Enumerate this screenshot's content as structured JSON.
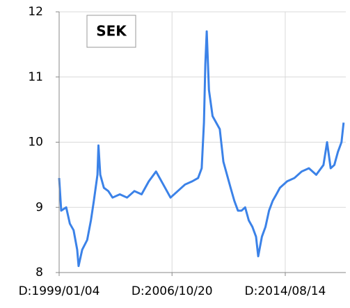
{
  "chart_data": {
    "type": "line",
    "title": "SEK",
    "x": [
      "1999/01/04",
      "1999/02/25",
      "1999/07/01",
      "1999/10/01",
      "2000/01/03",
      "2000/04/03",
      "2000/05/08",
      "2000/08/07",
      "2000/12/11",
      "2001/03/15",
      "2001/05/28",
      "2001/08/27",
      "2001/09/21",
      "2001/11/06",
      "2002/02/05",
      "2002/05/27",
      "2002/09/12",
      "2003/03/14",
      "2003/09/12",
      "2004/03/15",
      "2004/09/13",
      "2005/03/14",
      "2005/09/12",
      "2006/03/14",
      "2006/09/12",
      "2007/03/14",
      "2007/09/12",
      "2008/03/14",
      "2008/08/07",
      "2008/11/06",
      "2009/01/02",
      "2009/02/06",
      "2009/03/13",
      "2009/05/08",
      "2009/08/07",
      "2009/11/06",
      "2010/02/05",
      "2010/05/07",
      "2010/08/06",
      "2010/11/05",
      "2011/02/07",
      "2011/05/09",
      "2011/08/08",
      "2011/11/07",
      "2012/02/06",
      "2012/05/08",
      "2012/08/07",
      "2012/10/01",
      "2013/01/02",
      "2013/04/02",
      "2013/07/01",
      "2013/10/01",
      "2014/01/02",
      "2014/04/01",
      "2014/10/01",
      "2015/04/01",
      "2015/10/01",
      "2016/04/01",
      "2016/10/03",
      "2017/04/03",
      "2017/07/03",
      "2017/10/02",
      "2018/01/02",
      "2018/04/02",
      "2018/07/02",
      "2018/08/24"
    ],
    "series": [
      {
        "name": "SEK",
        "color": "#3b82e8",
        "values": [
          9.45,
          8.95,
          9.0,
          8.75,
          8.65,
          8.35,
          8.1,
          8.35,
          8.5,
          8.8,
          9.1,
          9.5,
          9.95,
          9.5,
          9.3,
          9.25,
          9.15,
          9.2,
          9.15,
          9.25,
          9.2,
          9.4,
          9.55,
          9.35,
          9.15,
          9.25,
          9.35,
          9.4,
          9.45,
          9.6,
          10.3,
          11.2,
          11.7,
          10.8,
          10.4,
          10.3,
          10.2,
          9.7,
          9.5,
          9.3,
          9.1,
          8.95,
          8.95,
          9.0,
          8.8,
          8.7,
          8.55,
          8.25,
          8.55,
          8.7,
          8.95,
          9.1,
          9.2,
          9.3,
          9.4,
          9.45,
          9.55,
          9.6,
          9.5,
          9.65,
          10.0,
          9.6,
          9.65,
          9.85,
          10.0,
          10.3
        ]
      }
    ],
    "xlim": [
      "1999/01/04",
      "2018/10/19"
    ],
    "xticks": [
      {
        "value": "1999/01/04",
        "label": "D:1999/01/04"
      },
      {
        "value": "2006/10/20",
        "label": "D:2006/10/20"
      },
      {
        "value": "2014/08/14",
        "label": "D:2014/08/14"
      }
    ],
    "ylim": [
      8,
      12
    ],
    "yticks": [
      8,
      9,
      10,
      11,
      12
    ],
    "grid": true
  }
}
